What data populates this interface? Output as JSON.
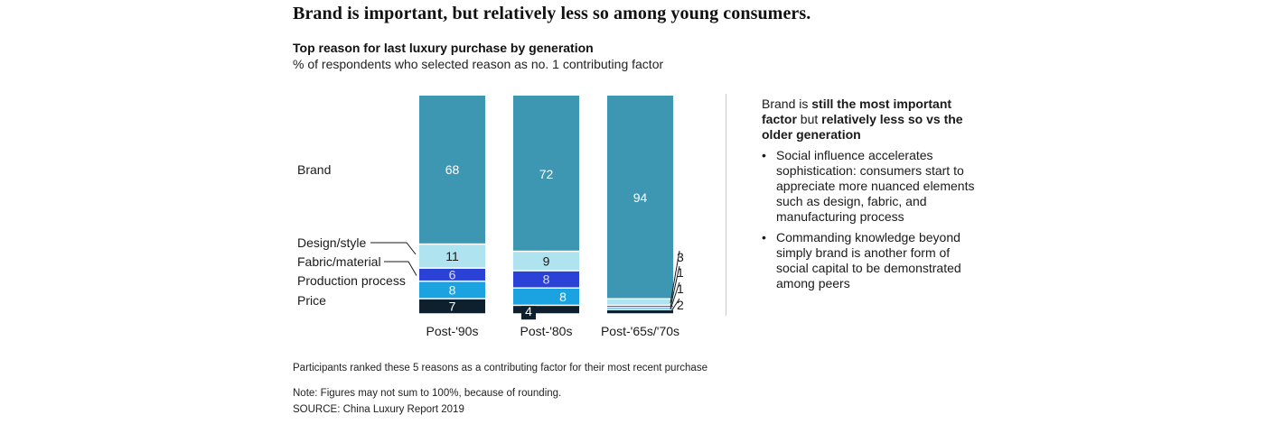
{
  "headline": "Brand is important, but relatively less so among young consumers.",
  "chart_data": {
    "type": "bar",
    "stacked": true,
    "title": "Top reason for last luxury purchase by generation",
    "subtitle": "% of respondents who selected reason as no. 1 contributing factor",
    "xlabel": "",
    "ylabel": "",
    "ylim": [
      0,
      100
    ],
    "grid": false,
    "legend_placement": "left",
    "categories": [
      "Post-'90s",
      "Post-'80s",
      "Post-'65s/'70s"
    ],
    "series": [
      {
        "name": "Price",
        "color": "#0e1f2e",
        "values": [
          7,
          4,
          2
        ]
      },
      {
        "name": "Production process",
        "color": "#1aa3e0",
        "values": [
          8,
          8,
          1
        ]
      },
      {
        "name": "Fabric/material",
        "color": "#2a43d6",
        "values": [
          6,
          8,
          1
        ]
      },
      {
        "name": "Design/style",
        "color": "#aee3ef",
        "values": [
          11,
          9,
          3
        ]
      },
      {
        "name": "Brand",
        "color": "#3d97b3",
        "values": [
          68,
          72,
          94
        ]
      }
    ],
    "legend_labels": [
      "Brand",
      "Design/style",
      "Fabric/material",
      "Production process",
      "Price"
    ]
  },
  "insight": {
    "lead_parts": [
      {
        "text": "Brand is ",
        "bold": false
      },
      {
        "text": "still the most important factor",
        "bold": true
      },
      {
        "text": " but ",
        "bold": false
      },
      {
        "text": "relatively less so vs the older generation",
        "bold": true
      }
    ],
    "bullet_glyph": "•",
    "bullets": [
      "Social influence accelerates sophistication: consumers start to appreciate more nuanced elements such as design, fabric, and manufacturing process",
      "Commanding knowledge beyond simply brand is another form of social capital to be demonstrated among peers"
    ]
  },
  "footnotes": {
    "participants": "Participants ranked these 5 reasons as a contributing factor for their most recent purchase",
    "note": "Note: Figures may not sum to 100%, because of rounding.",
    "source": "SOURCE: China Luxury Report 2019"
  }
}
